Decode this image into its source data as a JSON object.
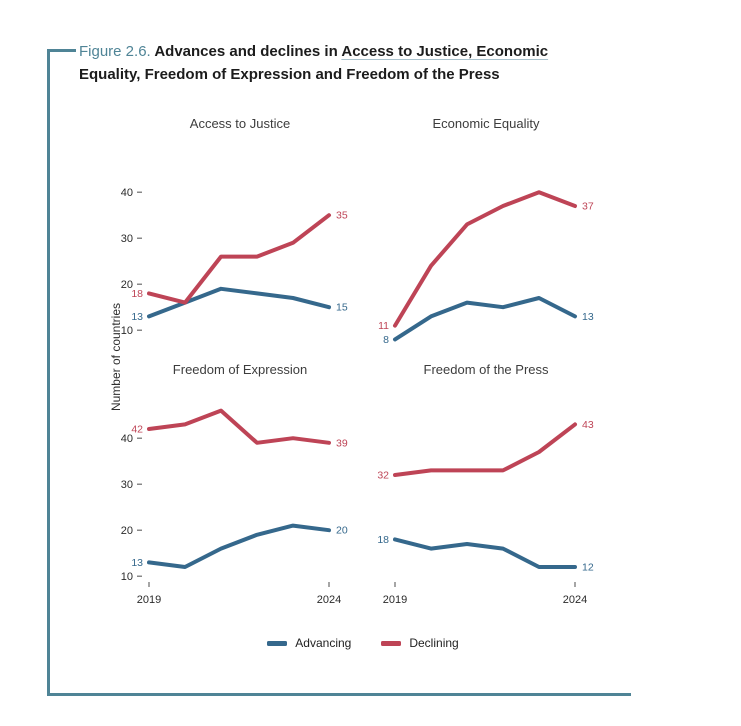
{
  "figure": {
    "label": "Figure 2.6.",
    "title_prefix": "Advances and declines in ",
    "title_underlined": "Access to Justice, Economic",
    "title_suffix": "Equality, Freedom of Expression and Freedom of the Press"
  },
  "axes": {
    "ylabel": "Number of countries",
    "y_ticks": [
      10,
      20,
      30,
      40
    ],
    "x_tick_labels": [
      "2019",
      "2024"
    ]
  },
  "legend": {
    "position": "bottom-center",
    "items": [
      {
        "label": "Advancing",
        "color": "#35688C"
      },
      {
        "label": "Declining",
        "color": "#BE4456"
      }
    ]
  },
  "colors": {
    "accent_teal": "#4F8496",
    "advancing_blue": "#35688C",
    "declining_red": "#BE4456"
  },
  "chart_data": [
    {
      "type": "line",
      "title": "Access to Justice",
      "x": [
        2019,
        2020,
        2021,
        2022,
        2023,
        2024
      ],
      "ylim": [
        5,
        47
      ],
      "grid": false,
      "show_y_axis": true,
      "show_x_axis": false,
      "series": [
        {
          "name": "Advancing",
          "values": [
            13,
            16,
            19,
            18,
            17,
            15
          ],
          "start_label": 13,
          "end_label": 15
        },
        {
          "name": "Declining",
          "values": [
            18,
            16,
            26,
            26,
            29,
            35
          ],
          "start_label": 18,
          "end_label": 35
        }
      ]
    },
    {
      "type": "line",
      "title": "Economic Equality",
      "x": [
        2019,
        2020,
        2021,
        2022,
        2023,
        2024
      ],
      "ylim": [
        5,
        47
      ],
      "grid": false,
      "show_y_axis": false,
      "show_x_axis": false,
      "series": [
        {
          "name": "Advancing",
          "values": [
            8,
            13,
            16,
            15,
            17,
            13
          ],
          "start_label": 8,
          "end_label": 13
        },
        {
          "name": "Declining",
          "values": [
            11,
            24,
            33,
            37,
            40,
            37
          ],
          "start_label": 11,
          "end_label": 37
        }
      ]
    },
    {
      "type": "line",
      "title": "Freedom of Expression",
      "x": [
        2019,
        2020,
        2021,
        2022,
        2023,
        2024
      ],
      "ylim": [
        5,
        47
      ],
      "grid": false,
      "show_y_axis": true,
      "show_x_axis": true,
      "series": [
        {
          "name": "Advancing",
          "values": [
            13,
            12,
            16,
            19,
            21,
            20
          ],
          "start_label": 13,
          "end_label": 20
        },
        {
          "name": "Declining",
          "values": [
            42,
            43,
            46,
            39,
            40,
            39
          ],
          "start_label": 42,
          "end_label": 39
        }
      ]
    },
    {
      "type": "line",
      "title": "Freedom of the Press",
      "x": [
        2019,
        2020,
        2021,
        2022,
        2023,
        2024
      ],
      "ylim": [
        5,
        47
      ],
      "grid": false,
      "show_y_axis": false,
      "show_x_axis": true,
      "series": [
        {
          "name": "Advancing",
          "values": [
            18,
            16,
            17,
            16,
            12,
            12
          ],
          "start_label": 18,
          "end_label": 12
        },
        {
          "name": "Declining",
          "values": [
            32,
            33,
            33,
            33,
            37,
            43
          ],
          "start_label": 32,
          "end_label": 43
        }
      ]
    }
  ]
}
